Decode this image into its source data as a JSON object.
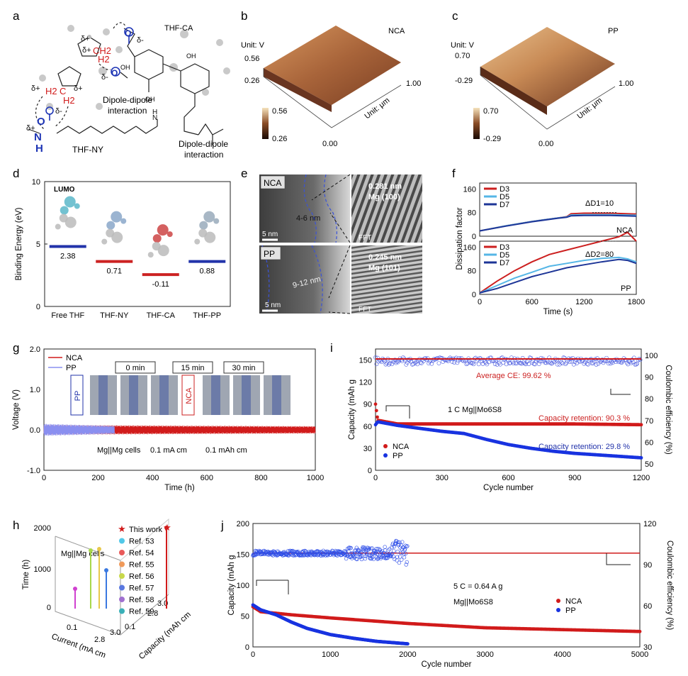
{
  "panels": {
    "a": {
      "label": "a",
      "molecules": {
        "thfca": "THF-CA",
        "thfny": "THF-NY"
      },
      "interactions": {
        "dd1_l1": "Dipole-dipole",
        "dd1_l2": "interaction",
        "dd2_l1": "Dipole-dipole",
        "dd2_l2": "interaction"
      },
      "charges": {
        "dp": "δ+",
        "dm": "δ-"
      },
      "atoms": {
        "ch2": "CH2",
        "h2": "H2",
        "h2b": "H2",
        "h2c": "C",
        "o": "O",
        "n": "N",
        "h": "H",
        "nh": "H",
        "oh": "OH"
      }
    },
    "b": {
      "label": "b",
      "unit_v": "Unit: V",
      "unit_um": "Unit: μm",
      "sample": "NCA",
      "z_max": "0.56",
      "z_min": "0.26",
      "cb_max": "0.56",
      "cb_min": "0.26",
      "x_zero": "0.00",
      "x_one": "1.00"
    },
    "c": {
      "label": "c",
      "unit_v": "Unit: V",
      "unit_um": "Unit: μm",
      "sample": "PP",
      "z_max": "0.70",
      "z_min": "-0.29",
      "cb_max": "0.70",
      "cb_min": "-0.29",
      "x_zero": "0.00",
      "x_one": "1.00"
    },
    "d": {
      "label": "d",
      "ylabel": "Binding Energy (eV)",
      "lumo": "LUMO"
    },
    "e": {
      "label": "e",
      "nca": "NCA",
      "pp": "PP",
      "nca_thick": "4-6 nm",
      "pp_thick": "9-12 nm",
      "scale1": "5 nm",
      "scale2": "5 nm",
      "nca_d": "0.281 nm",
      "nca_mg": "Mg (100)",
      "pp_d": "0.245 nm",
      "pp_mg": "Mg (101)",
      "fft1": "FFT",
      "fft2": "FFT"
    },
    "f": {
      "label": "f",
      "ylabel": "Dissipation factor",
      "xlabel": "Time (s)",
      "d1": "ΔD1=10",
      "d2": "ΔD2=80",
      "nca": "NCA",
      "pp": "PP",
      "legend": [
        "D3",
        "D5",
        "D7"
      ]
    },
    "g": {
      "label": "g",
      "ylabel": "Voltage (V)",
      "xlabel": "Time (h)",
      "legend": [
        "NCA",
        "PP"
      ],
      "times": [
        "0 min",
        "15 min",
        "30 min"
      ],
      "cond1": "Mg||Mg cells",
      "cond2": "0.1 mA cm",
      "cond3": "0.1 mAh cm",
      "sup": "-2",
      "inset_pp": "PP",
      "inset_nca": "NCA"
    },
    "h": {
      "label": "h",
      "title": "Mg||Mg cells",
      "zlabel": "Time (h)",
      "xlabel": "Current (mA cm",
      "ylabel": "Capacity (mAh cm",
      "sup": "-2",
      "close": ")",
      "xticks": [
        "0.1",
        "2.8",
        "3.0"
      ],
      "yticks": [
        "0.1",
        "2.8",
        "3.0"
      ],
      "zticks": [
        "0",
        "1000",
        "2000"
      ],
      "legend": [
        "This work",
        "Ref. 53",
        "Ref. 54",
        "Ref. 55",
        "Ref. 56",
        "Ref. 57",
        "Ref. 58",
        "Ref. 59"
      ]
    },
    "i": {
      "label": "i",
      "ylabel_l": "Capacity (mAh g",
      "ylabel_r": "Coulombic efficiency (%)",
      "xlabel": "Cycle number",
      "sup": "-1",
      "ce": "Average CE: 99.62 %",
      "rate": "1 C Mg||Mo6S8",
      "ret_nca": "Capacity retention: 90.3 %",
      "ret_pp": "Capacity retention: 29.8 %",
      "legend": [
        "NCA",
        "PP"
      ]
    },
    "j": {
      "label": "j",
      "ylabel_l": "Capacity (mAh g",
      "ylabel_r": "Coulombic efficiency (%)",
      "xlabel": "Cycle number",
      "sup": "-1",
      "rate": "5 C = 0.64 A g",
      "cell": "Mg||Mo6S8",
      "legend": [
        "NCA",
        "PP"
      ]
    }
  },
  "chart_data": [
    {
      "panel": "d",
      "type": "scatter",
      "title": "",
      "ylabel": "Binding Energy (eV)",
      "ylim": [
        0,
        10
      ],
      "categories": [
        "Free THF",
        "THF-NY",
        "THF-CA",
        "THF-PP"
      ],
      "values": [
        2.38,
        0.71,
        -0.11,
        0.88
      ],
      "value_labels": [
        "2.38",
        "0.71",
        "-0.11",
        "0.88"
      ],
      "level_y": [
        4.8,
        3.6,
        2.55,
        3.6
      ],
      "colors": [
        "#2233aa",
        "#cc2222",
        "#cc2222",
        "#2233aa"
      ],
      "yticks": [
        "0",
        "5",
        "10"
      ]
    },
    {
      "panel": "f",
      "type": "line",
      "xlabel": "Time (s)",
      "ylabel": "Dissipation factor",
      "xlim": [
        0,
        1800
      ],
      "xticks": [
        "0",
        "600",
        "1200",
        "1800"
      ],
      "yticks_top": [
        "0",
        "40",
        "80",
        "120",
        "160"
      ],
      "yticks_bottom": [
        "0",
        "40",
        "80",
        "120",
        "160"
      ],
      "top_series": [
        {
          "name": "D3",
          "color": "#cc1f1f",
          "x": [
            0,
            300,
            600,
            900,
            1000,
            1050,
            1200,
            1500,
            1800
          ],
          "y": [
            18,
            35,
            50,
            62,
            66,
            76,
            78,
            78,
            75
          ]
        },
        {
          "name": "D5",
          "color": "#55b6e6",
          "x": [
            0,
            300,
            600,
            900,
            1000,
            1050,
            1200,
            1500,
            1800
          ],
          "y": [
            18,
            35,
            50,
            62,
            65,
            72,
            73,
            73,
            71
          ]
        },
        {
          "name": "D7",
          "color": "#1d3597",
          "x": [
            0,
            300,
            600,
            900,
            1000,
            1050,
            1200,
            1500,
            1800
          ],
          "y": [
            18,
            34,
            49,
            61,
            64,
            69,
            70,
            70,
            68
          ]
        }
      ],
      "bottom_series": [
        {
          "name": "D3",
          "color": "#cc1f1f",
          "x": [
            0,
            200,
            400,
            600,
            800,
            1000,
            1200,
            1400,
            1600,
            1700,
            1800
          ],
          "y": [
            5,
            45,
            80,
            110,
            135,
            150,
            165,
            180,
            195,
            210,
            180
          ]
        },
        {
          "name": "D5",
          "color": "#55b6e6",
          "x": [
            0,
            200,
            400,
            600,
            800,
            1000,
            1200,
            1400,
            1600,
            1700,
            1800
          ],
          "y": [
            5,
            30,
            55,
            75,
            95,
            105,
            115,
            122,
            125,
            120,
            110
          ]
        },
        {
          "name": "D7",
          "color": "#1d3597",
          "x": [
            0,
            200,
            400,
            600,
            800,
            1000,
            1200,
            1400,
            1600,
            1700,
            1800
          ],
          "y": [
            5,
            20,
            40,
            60,
            75,
            90,
            100,
            110,
            118,
            115,
            105
          ]
        }
      ]
    },
    {
      "panel": "g",
      "type": "line",
      "xlabel": "Time (h)",
      "ylabel": "Voltage (V)",
      "xlim": [
        0,
        1000
      ],
      "ylim": [
        -1.0,
        2.0
      ],
      "xticks": [
        "0",
        "200",
        "400",
        "600",
        "800",
        "1000"
      ],
      "yticks": [
        "-1.0",
        "0.0",
        "1.0",
        "2.0"
      ],
      "series": [
        {
          "name": "NCA",
          "color": "#d11b1b",
          "xmax": 1000,
          "amp_start": 0.12,
          "amp_end": 0.09
        },
        {
          "name": "PP",
          "color": "#8a8ff0",
          "xmax": 260,
          "amp_start": 0.15,
          "amp_end": 0.1
        }
      ]
    },
    {
      "panel": "i",
      "type": "scatter",
      "xlabel": "Cycle number",
      "ylabel": "Capacity (mAh g-1)",
      "xlim": [
        0,
        1200
      ],
      "ylim": [
        0,
        165
      ],
      "xticks": [
        "0",
        "300",
        "600",
        "900",
        "1200"
      ],
      "yticks": [
        "0",
        "30",
        "60",
        "90",
        "120",
        "150"
      ],
      "yticks_r": [
        "50",
        "60",
        "70",
        "80",
        "90",
        "100"
      ],
      "series": [
        {
          "name": "NCA",
          "color": "#d11b1b",
          "x": [
            0,
            10,
            100,
            300,
            600,
            900,
            1200
          ],
          "y": [
            90,
            68,
            63,
            63,
            63,
            63,
            62
          ]
        },
        {
          "name": "PP",
          "color": "#1833e0",
          "x": [
            0,
            10,
            100,
            200,
            300,
            400,
            500,
            600,
            700,
            800,
            900,
            1000,
            1100,
            1200
          ],
          "y": [
            62,
            66,
            61,
            57,
            53,
            50,
            42,
            35,
            30,
            26,
            23,
            21,
            19,
            17
          ]
        }
      ]
    },
    {
      "panel": "j",
      "type": "scatter",
      "xlabel": "Cycle number",
      "ylabel": "Capacity (mAh g-1)",
      "xlim": [
        0,
        5000
      ],
      "ylim": [
        0,
        200
      ],
      "xticks": [
        "0",
        "1000",
        "2000",
        "3000",
        "4000",
        "5000"
      ],
      "yticks": [
        "0",
        "50",
        "100",
        "150",
        "200"
      ],
      "yticks_r": [
        "30",
        "60",
        "90",
        "120"
      ],
      "series": [
        {
          "name": "NCA",
          "color": "#d11b1b",
          "x": [
            0,
            100,
            500,
            1000,
            2000,
            3000,
            4000,
            5000
          ],
          "y": [
            65,
            57,
            52,
            47,
            38,
            31,
            28,
            25
          ]
        },
        {
          "name": "PP",
          "color": "#1833e0",
          "x": [
            0,
            100,
            300,
            500,
            700,
            1000,
            1300,
            1600,
            1900,
            2000
          ],
          "y": [
            68,
            60,
            52,
            40,
            30,
            20,
            14,
            9,
            6,
            5
          ]
        }
      ]
    }
  ]
}
